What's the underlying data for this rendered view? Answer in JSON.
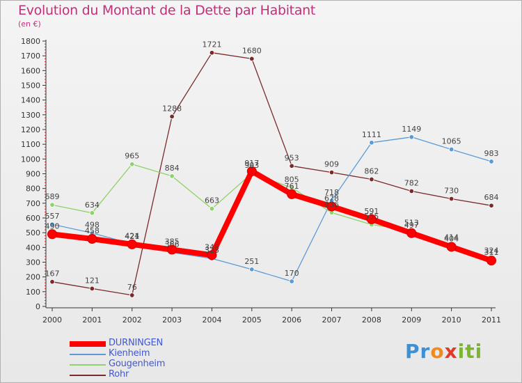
{
  "title": "Evolution du Montant de la Dette par Habitant",
  "unit_label": "(en €)",
  "logo_text": "Proxiti",
  "chart_data": {
    "type": "line",
    "title": "Evolution du Montant de la Dette par Habitant",
    "ylabel": "(en €)",
    "xlabel": "",
    "ylim": [
      0,
      1800
    ],
    "yticks": [
      0,
      100,
      200,
      300,
      400,
      500,
      600,
      700,
      800,
      900,
      1000,
      1100,
      1200,
      1300,
      1400,
      1500,
      1600,
      1700,
      1800
    ],
    "categories": [
      "2000",
      "2001",
      "2002",
      "2003",
      "2004",
      "2005",
      "2006",
      "2007",
      "2008",
      "2009",
      "2010",
      "2011"
    ],
    "grid": false,
    "legend": "bottom-left",
    "series": [
      {
        "name": "DURNINGEN",
        "color": "#ff0000",
        "values": [
          490,
          458,
          421,
          385,
          348,
          917,
          761,
          678,
          591,
          497,
          404,
          311
        ]
      },
      {
        "name": "Kienheim",
        "color": "#5b9bd5",
        "values": [
          557,
          498,
          424,
          366,
          325,
          251,
          170,
          718,
          1111,
          1149,
          1065,
          983
        ]
      },
      {
        "name": "Gougenheim",
        "color": "#8fd16a",
        "values": [
          689,
          634,
          965,
          884,
          663,
          903,
          805,
          636,
          555,
          513,
          414,
          324
        ]
      },
      {
        "name": "Rohr",
        "color": "#7a2a2a",
        "values": [
          167,
          121,
          76,
          1288,
          1721,
          1680,
          953,
          909,
          862,
          782,
          730,
          684
        ]
      }
    ]
  }
}
